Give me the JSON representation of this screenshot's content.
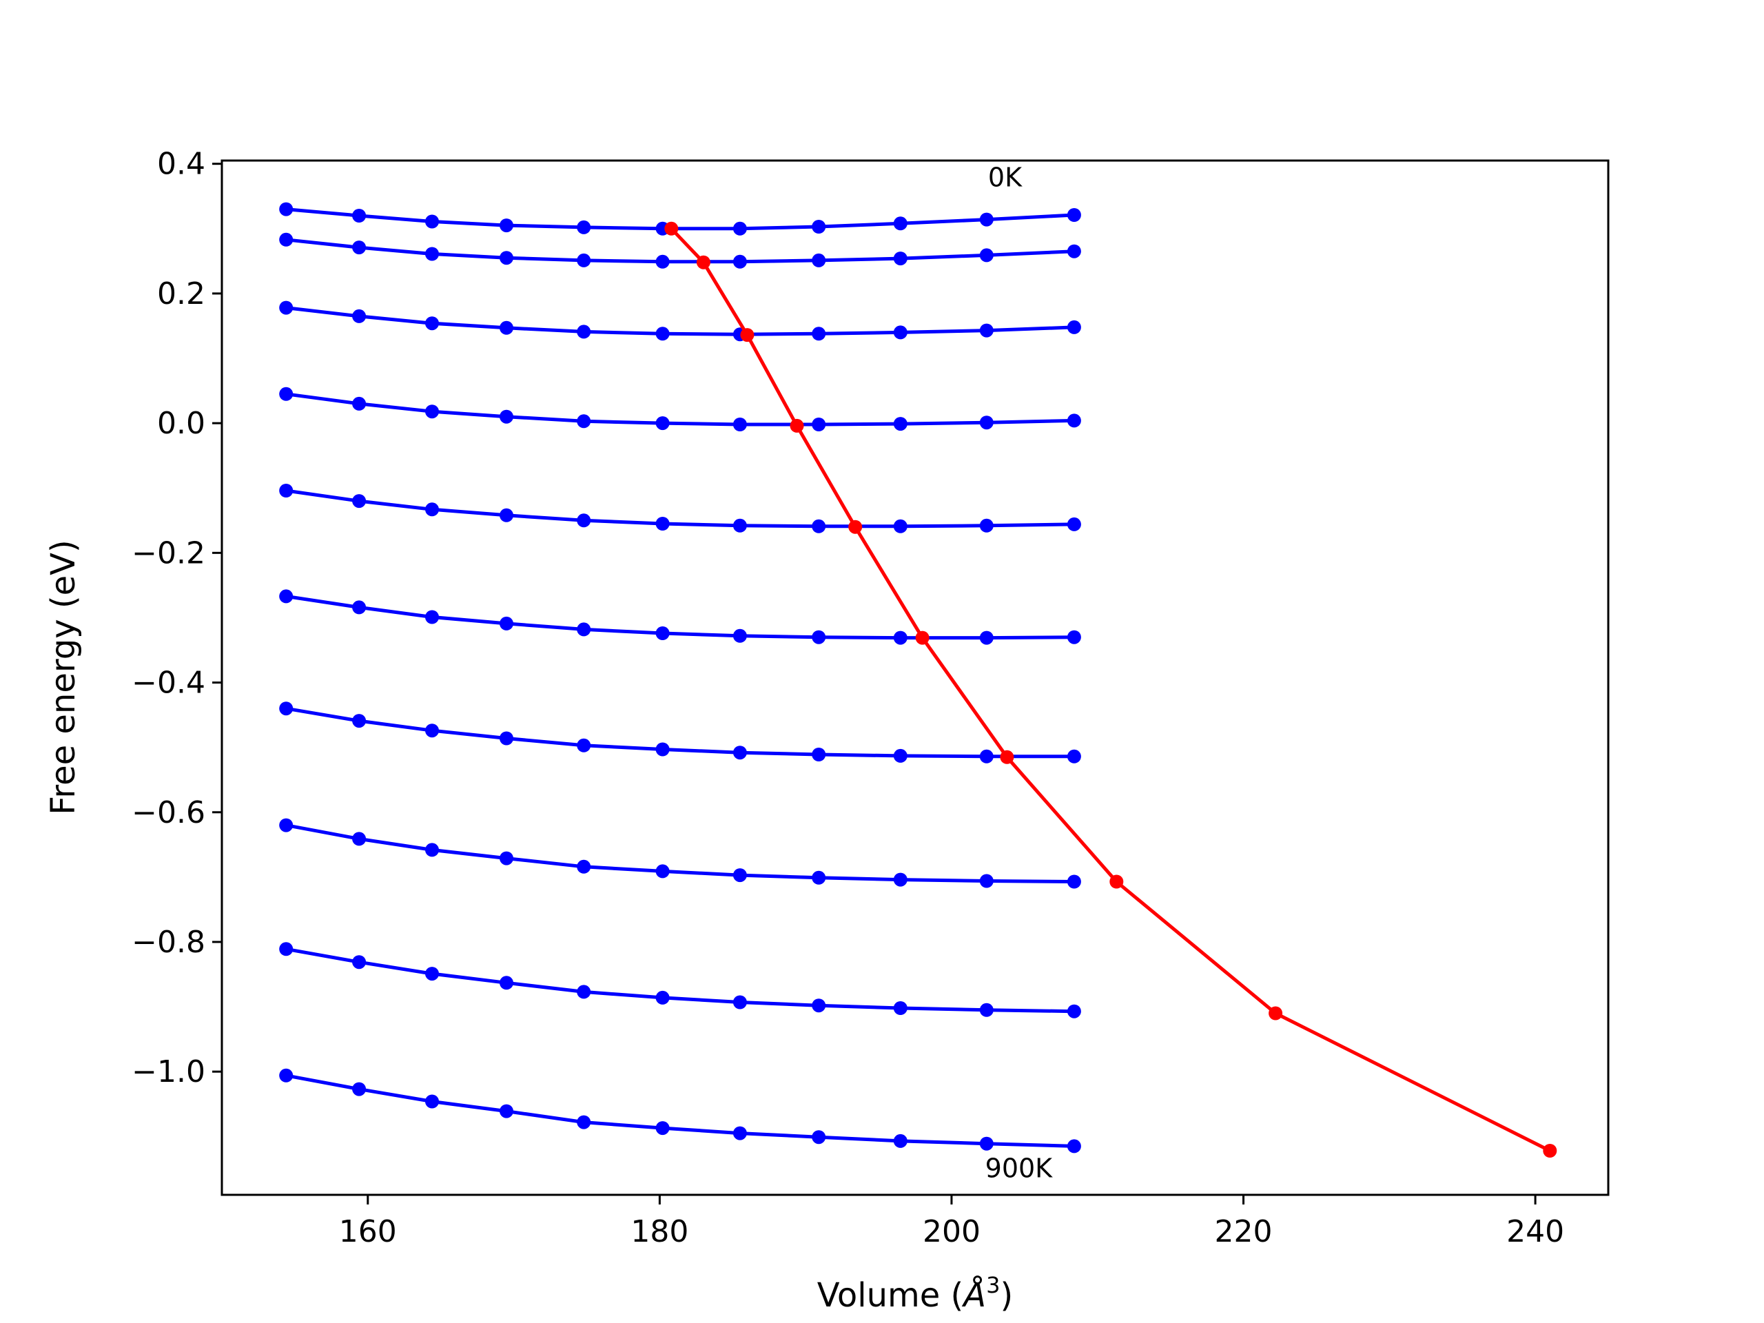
{
  "chart_data": {
    "type": "line",
    "xlabel": "Volume (",
    "xlabel_unit": "Å",
    "xlabel_exp": "3",
    "xlabel_close": ")",
    "ylabel": "Free energy (eV)",
    "xlim": [
      150,
      245
    ],
    "ylim": [
      -1.19,
      0.405
    ],
    "xticks": [
      160,
      180,
      200,
      220,
      240
    ],
    "xtick_labels": [
      "160",
      "180",
      "200",
      "220",
      "240"
    ],
    "yticks": [
      0.4,
      0.2,
      0.0,
      -0.2,
      -0.4,
      -0.6,
      -0.8,
      -1.0
    ],
    "ytick_labels": [
      "0.4",
      "0.2",
      "0.0",
      "−0.2",
      "−0.4",
      "−0.6",
      "−0.8",
      "−1.0"
    ],
    "annotations": [
      {
        "text": "0K",
        "x": 202.5,
        "y": 0.378
      },
      {
        "text": "900K",
        "x": 202.3,
        "y": -1.15
      }
    ],
    "x": [
      154.4,
      159.4,
      164.4,
      169.5,
      174.8,
      180.2,
      185.5,
      190.9,
      196.5,
      202.4,
      208.4
    ],
    "series": [
      {
        "color": "#0000ff",
        "values": [
          0.33,
          0.32,
          0.311,
          0.305,
          0.302,
          0.3,
          0.3,
          0.303,
          0.308,
          0.314,
          0.321
        ]
      },
      {
        "color": "#0000ff",
        "values": [
          0.283,
          0.271,
          0.261,
          0.255,
          0.251,
          0.249,
          0.249,
          0.251,
          0.254,
          0.259,
          0.265
        ]
      },
      {
        "color": "#0000ff",
        "values": [
          0.178,
          0.165,
          0.154,
          0.147,
          0.141,
          0.138,
          0.137,
          0.138,
          0.14,
          0.143,
          0.148
        ]
      },
      {
        "color": "#0000ff",
        "values": [
          0.045,
          0.03,
          0.018,
          0.01,
          0.003,
          0.0,
          -0.002,
          -0.002,
          -0.001,
          0.001,
          0.004
        ]
      },
      {
        "color": "#0000ff",
        "values": [
          -0.104,
          -0.12,
          -0.133,
          -0.142,
          -0.15,
          -0.155,
          -0.158,
          -0.159,
          -0.159,
          -0.158,
          -0.156
        ]
      },
      {
        "color": "#0000ff",
        "values": [
          -0.267,
          -0.284,
          -0.299,
          -0.309,
          -0.318,
          -0.324,
          -0.328,
          -0.33,
          -0.331,
          -0.331,
          -0.33
        ]
      },
      {
        "color": "#0000ff",
        "values": [
          -0.44,
          -0.459,
          -0.474,
          -0.486,
          -0.497,
          -0.503,
          -0.508,
          -0.511,
          -0.513,
          -0.514,
          -0.514
        ]
      },
      {
        "color": "#0000ff",
        "values": [
          -0.62,
          -0.641,
          -0.658,
          -0.671,
          -0.684,
          -0.691,
          -0.697,
          -0.701,
          -0.704,
          -0.706,
          -0.707
        ]
      },
      {
        "color": "#0000ff",
        "values": [
          -0.811,
          -0.831,
          -0.849,
          -0.863,
          -0.877,
          -0.886,
          -0.893,
          -0.898,
          -0.902,
          -0.905,
          -0.907
        ]
      },
      {
        "color": "#0000ff",
        "values": [
          -1.006,
          -1.027,
          -1.046,
          -1.061,
          -1.078,
          -1.087,
          -1.095,
          -1.101,
          -1.107,
          -1.111,
          -1.115
        ]
      }
    ],
    "minima_series": {
      "color": "#ff0000",
      "x": [
        180.8,
        183.0,
        186.0,
        189.4,
        193.4,
        198.0,
        203.8,
        211.3,
        222.2,
        241.0
      ],
      "values": [
        0.3,
        0.248,
        0.136,
        -0.004,
        -0.16,
        -0.331,
        -0.515,
        -0.707,
        -0.91,
        -1.122
      ]
    }
  }
}
